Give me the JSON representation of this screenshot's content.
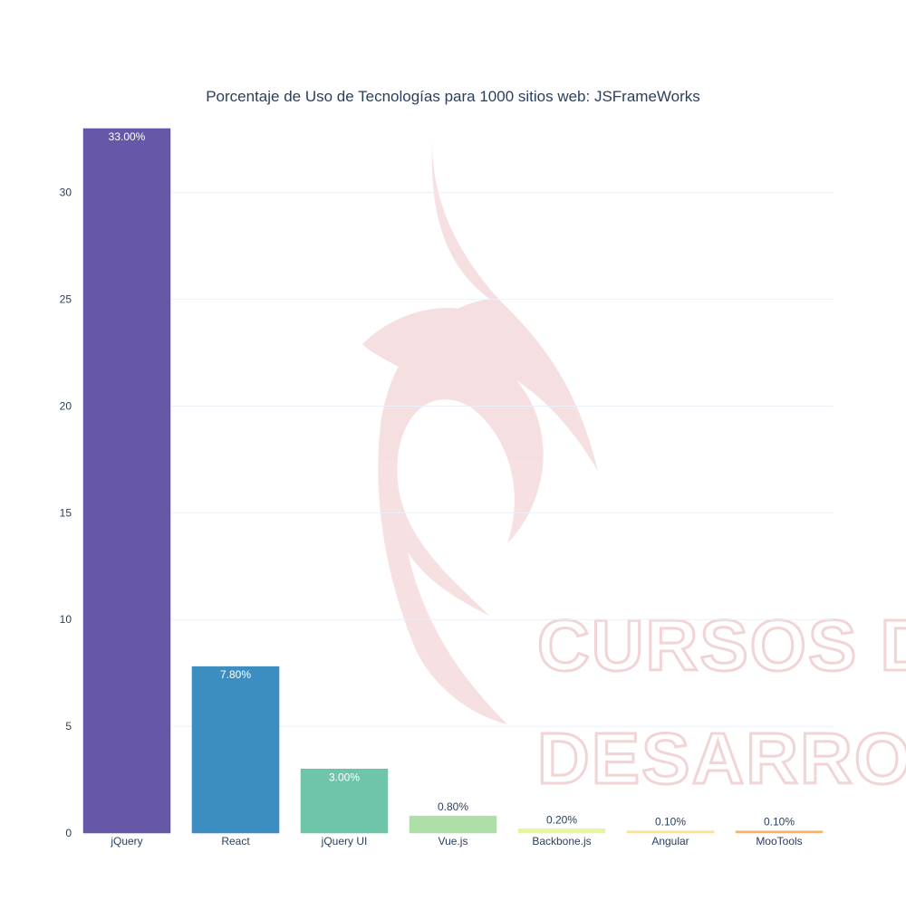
{
  "chart_data": {
    "type": "bar",
    "title": "Porcentaje de Uso de Tecnologías para 1000 sitios web: JSFrameWorks",
    "xlabel": "",
    "ylabel": "",
    "categories": [
      "jQuery",
      "React",
      "jQuery UI",
      "Vue.js",
      "Backbone.js",
      "Angular",
      "MooTools"
    ],
    "values": [
      33.0,
      7.8,
      3.0,
      0.8,
      0.2,
      0.1,
      0.1
    ],
    "labels": [
      "33.00%",
      "7.80%",
      "3.00%",
      "0.80%",
      "0.20%",
      "0.10%",
      "0.10%"
    ],
    "colors": [
      "#5e4fa2",
      "#3288bd",
      "#66c2a5",
      "#abdda4",
      "#e6f598",
      "#fee08b",
      "#fdae61"
    ],
    "yticks": [
      0,
      5,
      10,
      15,
      20,
      25,
      30
    ],
    "ylim": [
      0,
      33
    ],
    "grid": true
  },
  "watermark": {
    "line1": "CURSOS DE",
    "line2": "DESARROLLO",
    "color": "#e7b2b6"
  }
}
